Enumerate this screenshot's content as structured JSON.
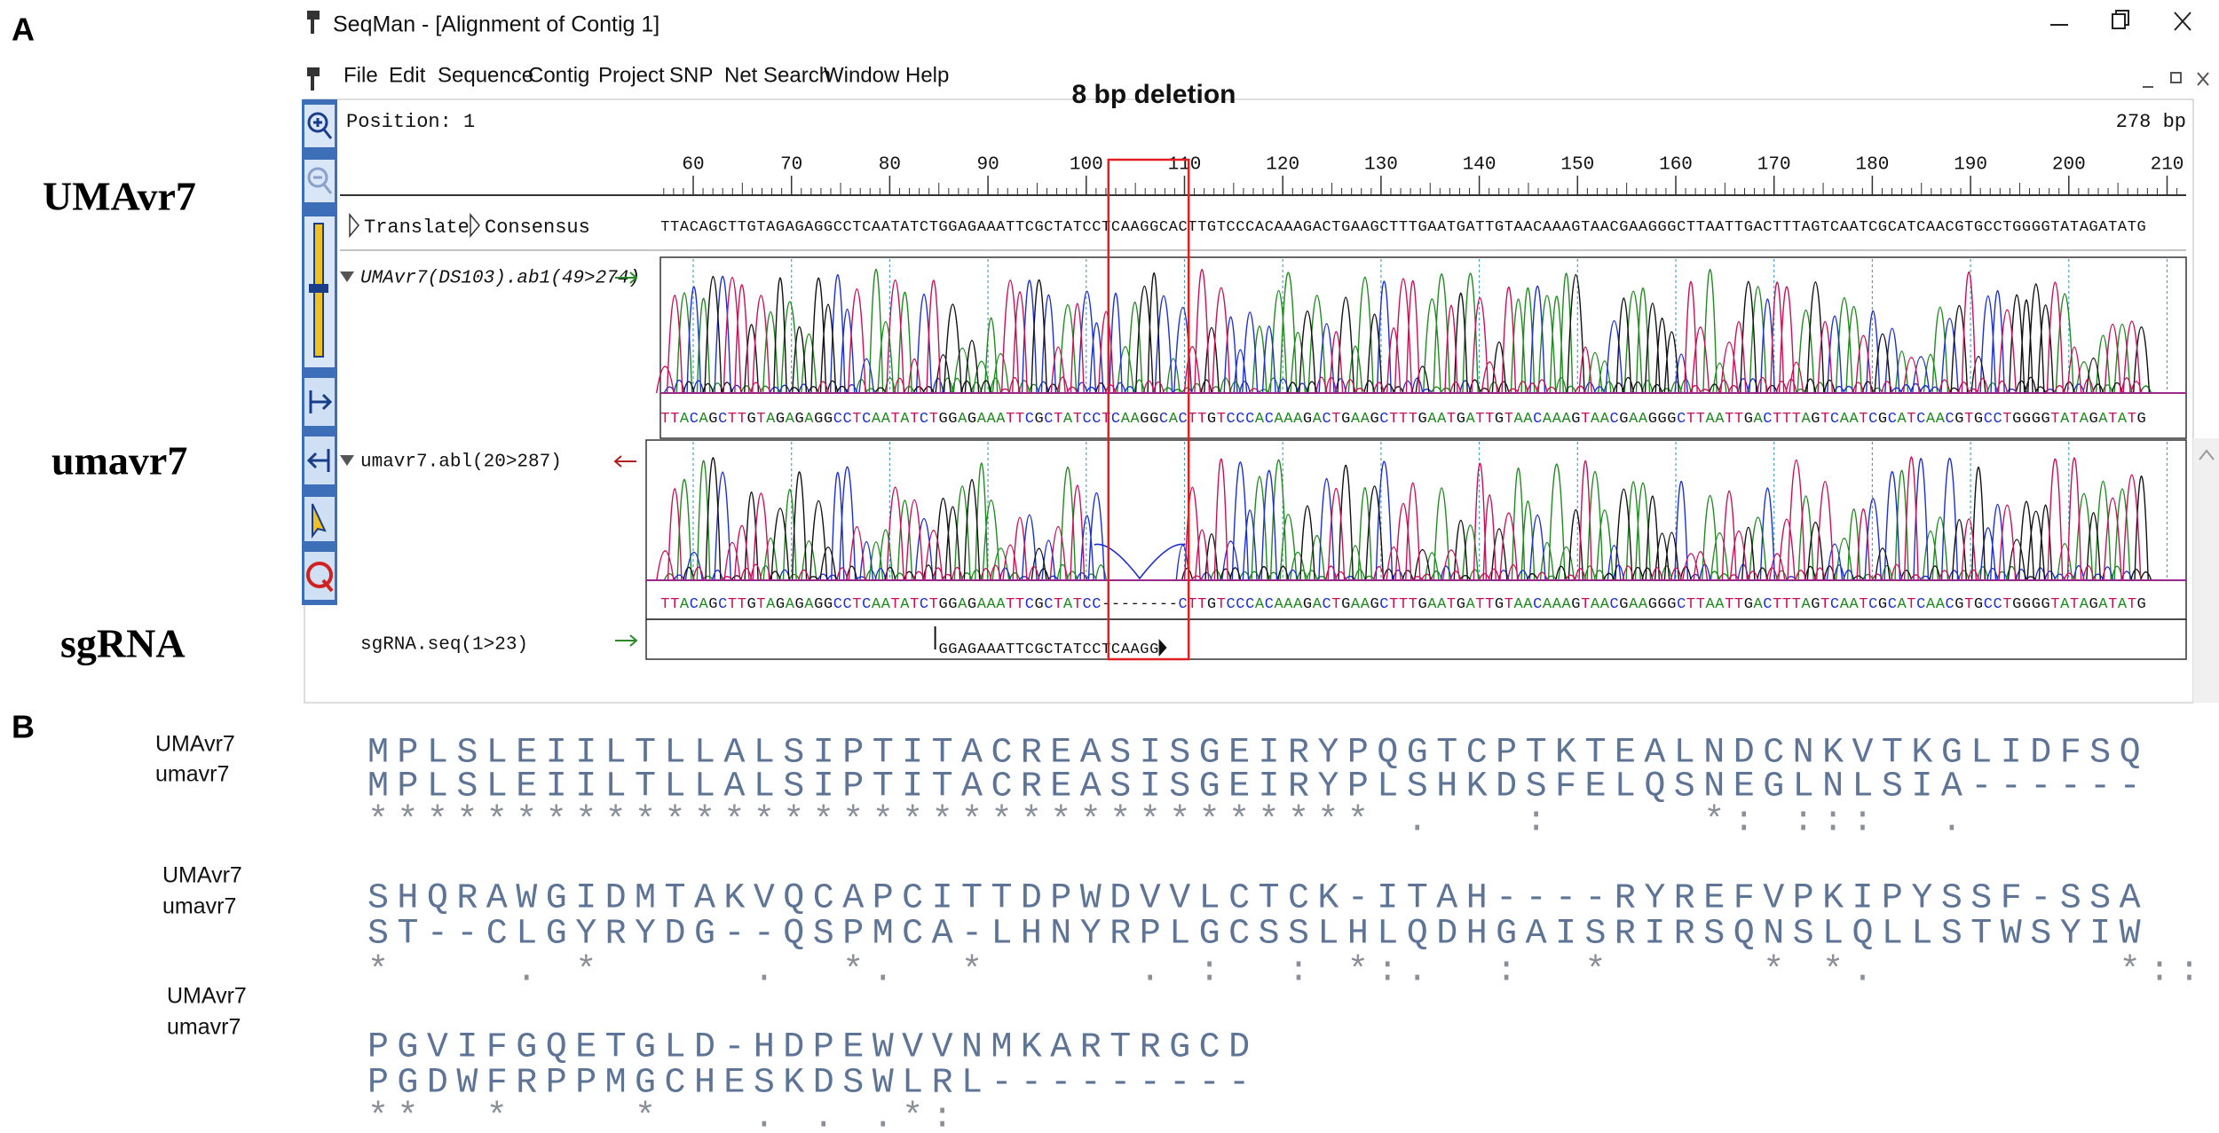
{
  "panel_labels": [
    "A",
    "B"
  ],
  "side_labels": [
    "UMAvr7",
    "umavr7",
    "sgRNA"
  ],
  "deletion_label": "8 bp deletion",
  "window": {
    "title": "SeqMan - [Alignment of Contig 1]",
    "menu": [
      "File",
      "Edit",
      "Sequence",
      "Contig",
      "Project",
      "SNP",
      "Net Search",
      "Window",
      "Help"
    ],
    "position": "Position: 1",
    "length": "278 bp"
  },
  "ruler": [
    60,
    70,
    80,
    90,
    100,
    110,
    120,
    130,
    140,
    150,
    160,
    170,
    180,
    190,
    200,
    210
  ],
  "consensus": {
    "buttons": [
      "Translate",
      "Consensus"
    ],
    "sequence": "TTACAGCTTGTAGAGAGGCCTCAATATCTGGAGAAATTCGCTATCCTCAAGGCACTTGTCCCACAAAGACTGAAGCTTTGAATGATTGTAACAAAGTAACGAAGGGCTTAATTGACTTTAGTCAATCGCATCAACGTGCCTGGGGTATAGATATG"
  },
  "reads": [
    {
      "name": "UMAvr7(DS103).ab1(49>274)",
      "sequence": "TTACAGCTTGTAGAGAGGCCTCAATATCTGGAGAAATTCGCTATCCTCAAGGCACTTGTCCCACAAAGACTGAAGCTTTGAATGATTGTAACAAAGTAACGAAGGGCTTAATTGACTTTAGTCAATCGCATCAACGTGCCTGGGGTATAGATATG"
    },
    {
      "name": "umavr7.abl(20>287)",
      "sequence": "TTACAGCTTGTAGAGAGGCCTCAATATCTGGAGAAATTCGCTATCC--------CTTGTCCCACAAAGACTGAAGCTTTGAATGATTGTAACAAAGTAACGAAGGGCTTAATTGACTTTAGTCAATCGCATCAACGTGCCTGGGGTATAGATATG"
    }
  ],
  "sgrna": {
    "name": "sgRNA.seq(1>23)",
    "sequence": "GGAGAAATTCGCTATCCTCAAGG"
  },
  "alignment": [
    {
      "labels": [
        "UMAvr7",
        "umavr7"
      ],
      "lines": [
        "MPLSLEIILTLLALSIPTITACREASISGEIRYPQGTCPTKTEALNDCNKVTKGLIDFSQ",
        "MPLSLEIILTLLALSIPTITACREASISGEIRYPLSHKDSFELQSNEGLNLSIA------",
        "********************************** .   :     *: :::  ."
      ]
    },
    {
      "labels": [
        "UMAvr7",
        "umavr7"
      ],
      "lines": [
        "SHQRAWGIDMTAKVQCAPCITTDPWDVVLCTCK-ITAH----RYREFVPKIPYSSF-SSA",
        "ST--CLGYRYDG--QSPMCA-LHNYRPLGCSSLHLQDHGAISRIRSQNSLQLLSTWSYIW",
        "*    . *     .  *.  *     . :  : *:.  :  *     * *.        *::"
      ]
    },
    {
      "labels": [
        "UMAvr7",
        "umavr7"
      ],
      "lines": [
        "PGVIFGQETGLD-HDPEWVVNMKARTRGCD",
        "PGDWFRPPMGCHESKDSWLRL---------",
        "**  *    *   . . .*:"
      ]
    }
  ]
}
